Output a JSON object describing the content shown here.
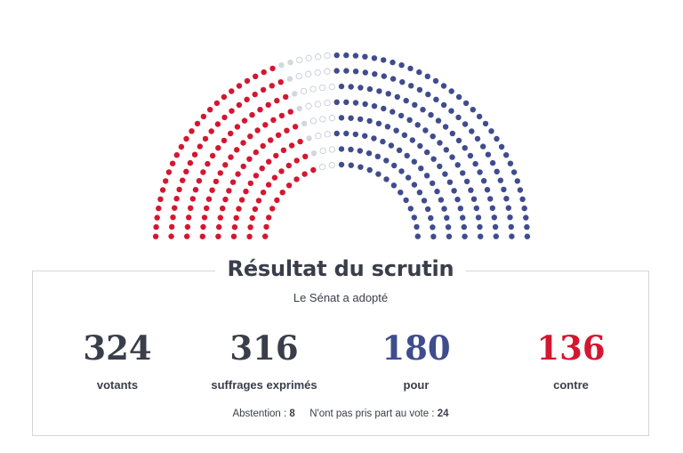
{
  "hemicycle": {
    "colors": {
      "contre": "#d31730",
      "pour": "#3f4c8d",
      "abstention": "#d4d7df",
      "nppv": "#ffffff"
    },
    "counts": {
      "contre": 136,
      "pour": 180,
      "abstention": 8,
      "nppv": 24
    }
  },
  "result": {
    "title": "Résultat du scrutin",
    "subtitle": "Le Sénat a adopté",
    "stats": [
      {
        "value": "324",
        "label": "votants"
      },
      {
        "value": "316",
        "label": "suffrages exprimés"
      },
      {
        "value": "180",
        "label": "pour"
      },
      {
        "value": "136",
        "label": "contre"
      }
    ],
    "footer": {
      "abstention_label": "Abstention :",
      "abstention_value": "8",
      "nppv_label": "N'ont pas pris part au vote :",
      "nppv_value": "24"
    }
  }
}
